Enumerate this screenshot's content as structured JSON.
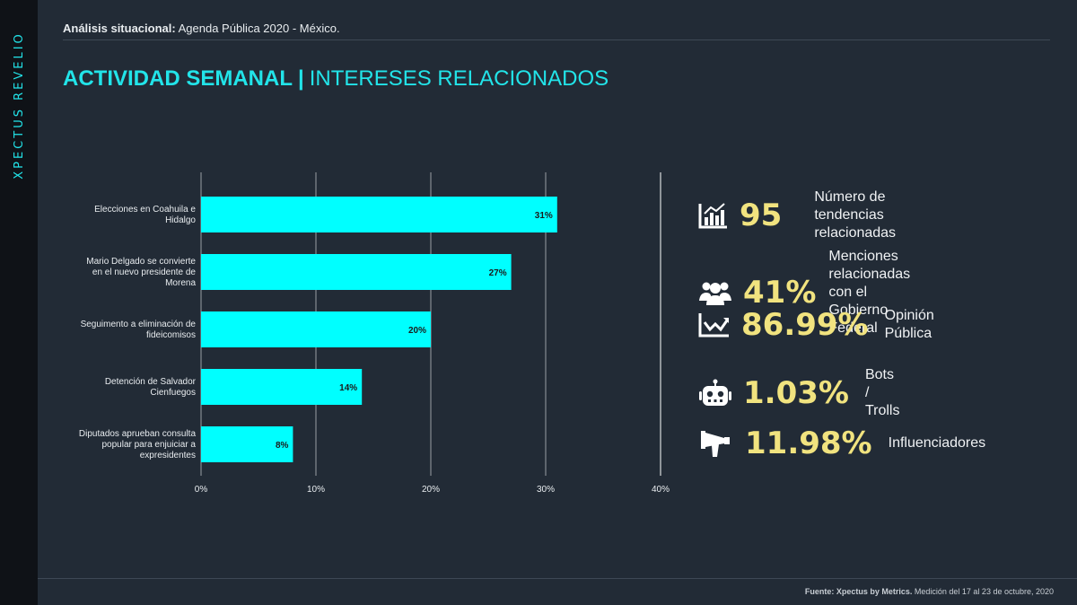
{
  "brand": "XPECTUS REVELIO",
  "header": {
    "label": "Análisis situacional:",
    "text": "Agenda Pública 2020 - México."
  },
  "title": {
    "main": "ACTIVIDAD SEMANAL",
    "sep": "|",
    "sub": "INTERESES RELACIONADOS"
  },
  "colors": {
    "accent": "#22e4e9",
    "bar": "#00ffff",
    "value": "#f1e37f",
    "background": "#222b36"
  },
  "chart_data": {
    "type": "bar",
    "orientation": "horizontal",
    "categories": [
      [
        "Elecciones en Coahuila e",
        "Hidalgo"
      ],
      [
        "Mario Delgado se convierte",
        "en el nuevo presidente de",
        "Morena"
      ],
      [
        "Seguimento a eliminación de",
        "fideicomisos"
      ],
      [
        "Detención de Salvador",
        "Cienfuegos"
      ],
      [
        "Diputados aprueban consulta",
        "popular para enjuiciar a",
        "expresidentes"
      ]
    ],
    "values": [
      31,
      27,
      20,
      14,
      8
    ],
    "data_labels": [
      "31%",
      "27%",
      "20%",
      "14%",
      "8%"
    ],
    "xlim": [
      0,
      40
    ],
    "xticks": [
      0,
      10,
      20,
      30,
      40
    ],
    "xtick_labels": [
      "0%",
      "10%",
      "20%",
      "30%",
      "40%"
    ],
    "grid": true
  },
  "stats": [
    {
      "icon": "bar-chart-icon",
      "value": "95",
      "label": [
        "Número de tendencias",
        "relacionadas"
      ]
    },
    {
      "icon": "users-icon",
      "value": "41%",
      "label": [
        "Menciones relacionadas",
        "con el Gobierno Federal"
      ]
    },
    {
      "icon": "line-chart-icon",
      "value": "86.99%",
      "label": [
        "Opinión Pública"
      ]
    },
    {
      "icon": "robot-icon",
      "value": "1.03%",
      "label": [
        "Bots / Trolls"
      ]
    },
    {
      "icon": "megaphone-icon",
      "value": "11.98%",
      "label": [
        "Influenciadores"
      ]
    }
  ],
  "footer": {
    "source": "Fuente: Xpectus by Metrics.",
    "text": "Medición del 17 al 23 de octubre, 2020"
  }
}
